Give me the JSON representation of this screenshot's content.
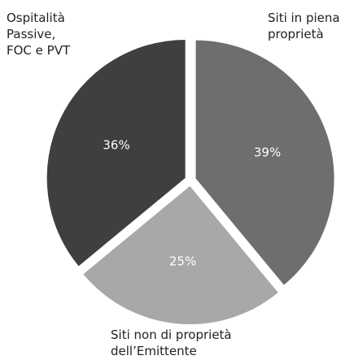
{
  "chart_data": {
    "type": "pie",
    "categories": [
      "Siti in piena proprietà",
      "Siti non di proprietà dell’Emittente",
      "Ospitalità Passive, FOC e PVT"
    ],
    "values": [
      39,
      25,
      36
    ],
    "value_labels": [
      "39%",
      "25%",
      "36%"
    ],
    "colors": [
      "#6e6e6e",
      "#a8a8a8",
      "#3f3f3f"
    ]
  }
}
